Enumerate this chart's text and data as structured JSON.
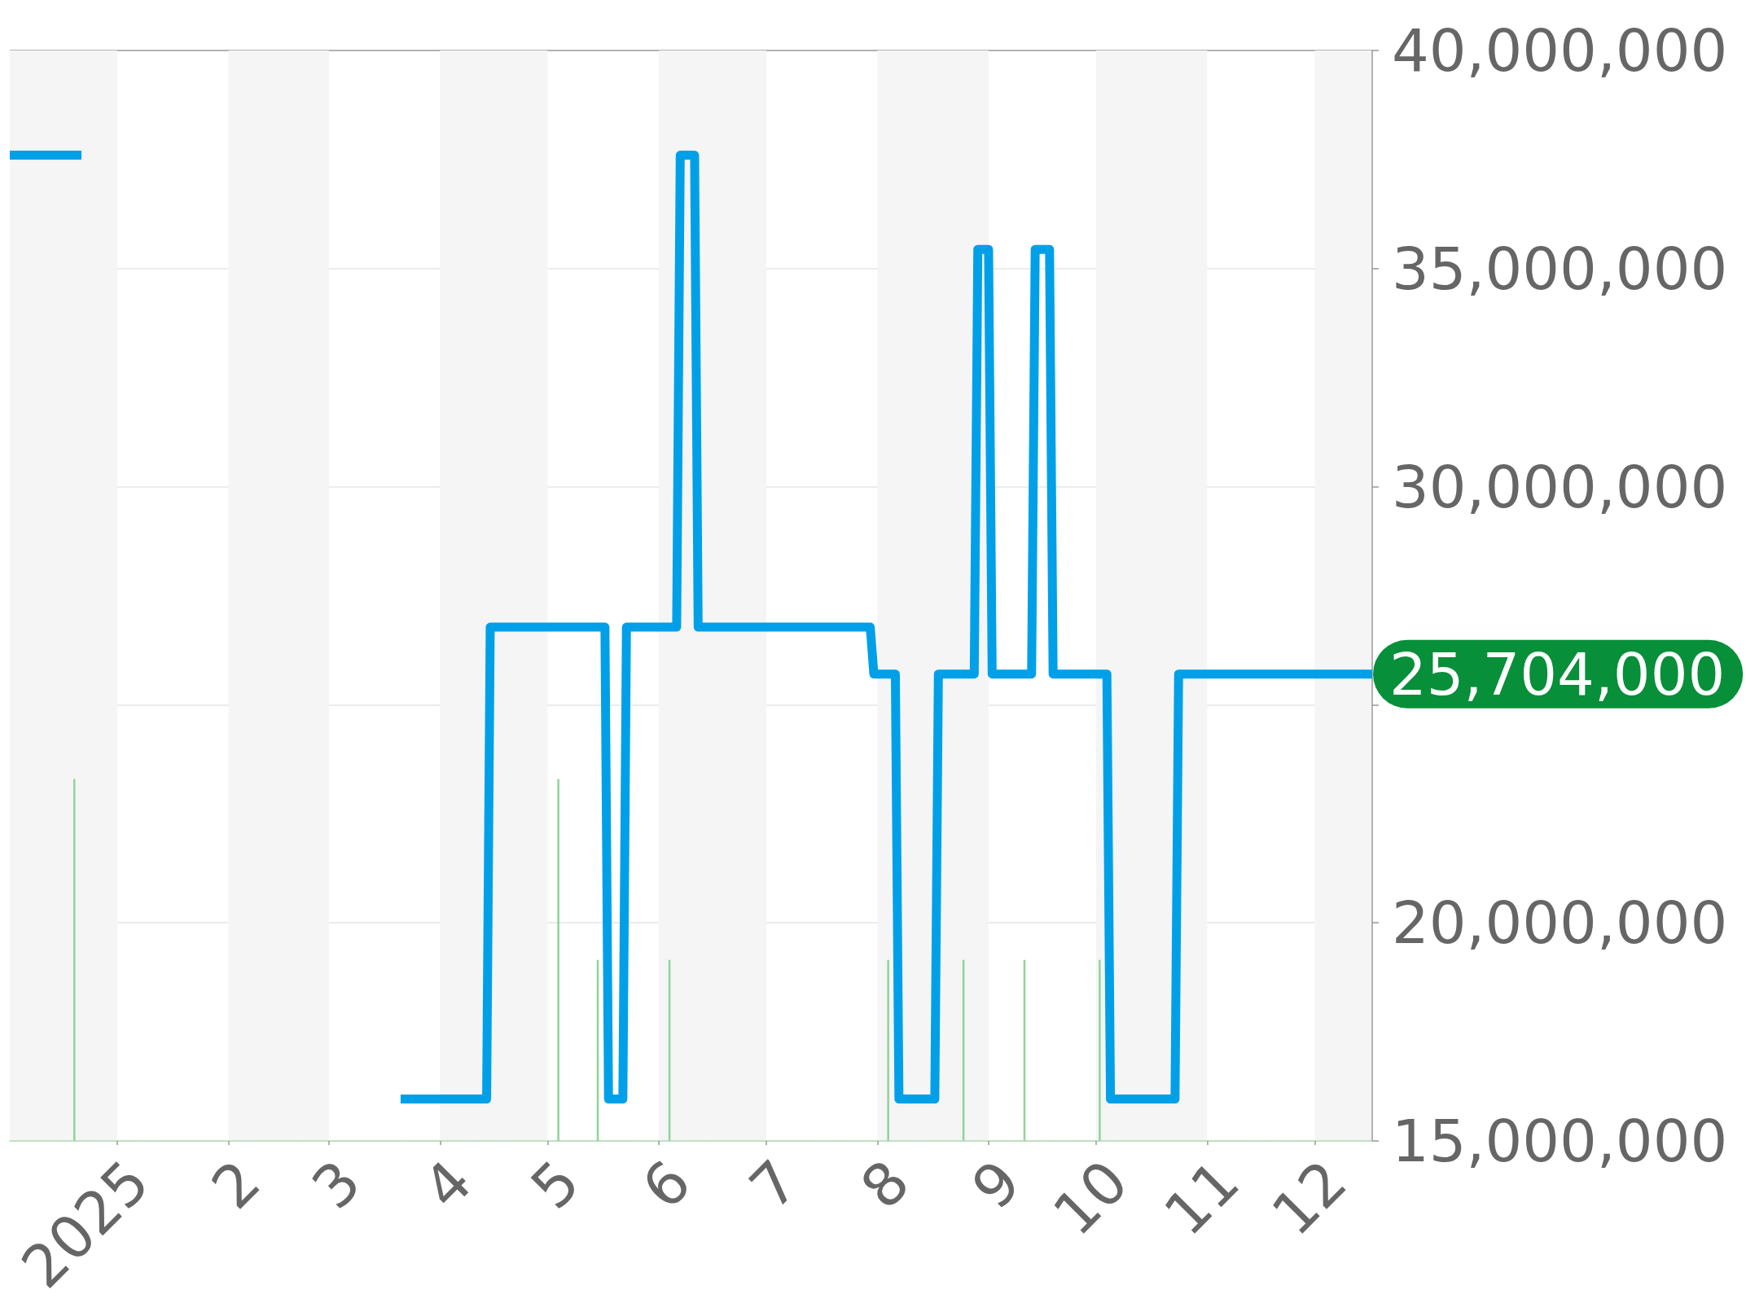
{
  "chart_data": {
    "type": "line",
    "xlim": [
      "2024-12-02",
      "2025-12-17"
    ],
    "xticks": [
      {
        "value": "2025-01-01",
        "label": "2025"
      },
      {
        "value": "2025-02-01",
        "label": "2"
      },
      {
        "value": "2025-03-01",
        "label": "3"
      },
      {
        "value": "2025-04-01",
        "label": "4"
      },
      {
        "value": "2025-05-01",
        "label": "5"
      },
      {
        "value": "2025-06-01",
        "label": "6"
      },
      {
        "value": "2025-07-01",
        "label": "7"
      },
      {
        "value": "2025-08-01",
        "label": "8"
      },
      {
        "value": "2025-09-01",
        "label": "9"
      },
      {
        "value": "2025-10-01",
        "label": "10"
      },
      {
        "value": "2025-11-01",
        "label": "11"
      },
      {
        "value": "2025-12-01",
        "label": "12"
      }
    ],
    "ylim": [
      15000000,
      40000000
    ],
    "yticks": [
      {
        "value": 15000000,
        "label": "15,000,000"
      },
      {
        "value": 20000000,
        "label": "20,000,000"
      },
      {
        "value": 25000000,
        "label": null
      },
      {
        "value": 30000000,
        "label": "30,000,000"
      },
      {
        "value": 35000000,
        "label": "35,000,000"
      },
      {
        "value": 40000000,
        "label": "40,000,000"
      }
    ],
    "grid": "y",
    "series": [
      {
        "type": "bar",
        "color": "#8fd498",
        "x": [
          "2024-12-20",
          "2025-05-04",
          "2025-05-15",
          "2025-06-04",
          "2025-08-04",
          "2025-08-25",
          "2025-09-11",
          "2025-10-02"
        ],
        "values": [
          23300000,
          23300000,
          19150000,
          19150000,
          19150000,
          19150000,
          19150000,
          19150000
        ]
      },
      {
        "color": "#00a0e9",
        "x": [
          "2024-12-02",
          "2024-12-22",
          "2025-02-01",
          "2025-03-21",
          "2025-04-14",
          "2025-04-15",
          "2025-05-17",
          "2025-05-18",
          "2025-05-22",
          "2025-05-23",
          "2025-06-06",
          "2025-06-07",
          "2025-06-11",
          "2025-06-12",
          "2025-07-30",
          "2025-07-31",
          "2025-08-06",
          "2025-08-07",
          "2025-08-17",
          "2025-08-18",
          "2025-08-28",
          "2025-08-29",
          "2025-09-01",
          "2025-09-02",
          "2025-09-13",
          "2025-09-14",
          "2025-09-18",
          "2025-09-19",
          "2025-10-04",
          "2025-10-05",
          "2025-10-23",
          "2025-10-24",
          "2025-12-17"
        ],
        "values": [
          37600000,
          37600000,
          null,
          15960000,
          15960000,
          26780000,
          26780000,
          15960000,
          15960000,
          26780000,
          26780000,
          37600000,
          37600000,
          26780000,
          26780000,
          25704000,
          25704000,
          15960000,
          15960000,
          25704000,
          25704000,
          35440000,
          35440000,
          25704000,
          25704000,
          35440000,
          35440000,
          25704000,
          25704000,
          15960000,
          15960000,
          25704000,
          25704000
        ]
      }
    ],
    "bands": [
      {
        "axis": "x",
        "from": "2024-12-02",
        "to": "2025-01-01",
        "color": "#f5f5f5"
      },
      {
        "axis": "x",
        "from": "2025-02-01",
        "to": "2025-03-01",
        "color": "#f5f5f5"
      },
      {
        "axis": "x",
        "from": "2025-04-01",
        "to": "2025-05-01",
        "color": "#f5f5f5"
      },
      {
        "axis": "x",
        "from": "2025-06-01",
        "to": "2025-07-01",
        "color": "#f5f5f5"
      },
      {
        "axis": "x",
        "from": "2025-08-01",
        "to": "2025-09-01",
        "color": "#f5f5f5"
      },
      {
        "axis": "x",
        "from": "2025-10-01",
        "to": "2025-11-01",
        "color": "#f5f5f5"
      },
      {
        "axis": "x",
        "from": "2025-12-01",
        "to": "2025-12-17",
        "color": "#f5f5f5"
      }
    ],
    "annotations": [
      {
        "text": "25,704,000",
        "x": "2025-12-17",
        "y": 25704000
      }
    ]
  }
}
